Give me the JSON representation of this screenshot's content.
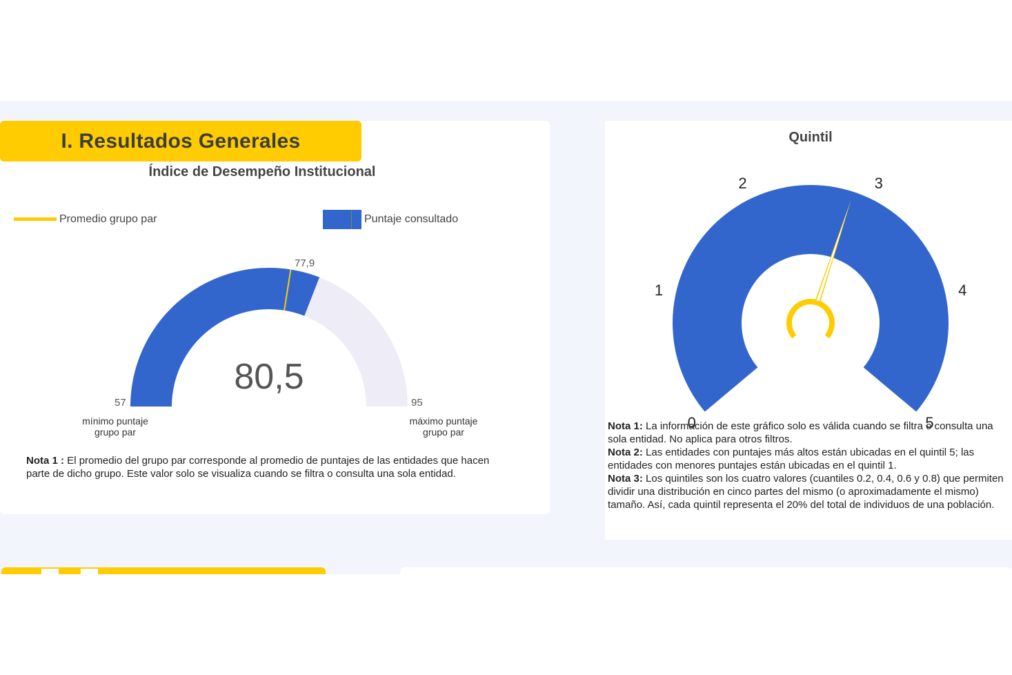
{
  "section": {
    "title": "I. Resultados Generales"
  },
  "gauge_left": {
    "title": "Índice de Desempeño Institucional",
    "legend": {
      "avg_label": "Promedio grupo par",
      "score_label": "Puntaje consultado"
    },
    "min": 57,
    "max": 95,
    "value": 80.5,
    "value_text": "80,5",
    "avg": 77.9,
    "avg_text": "77,9",
    "min_text": "57",
    "max_text": "95",
    "min_caption_1": "mínimo puntaje",
    "min_caption_2": "grupo par",
    "max_caption_1": "máximo puntaje",
    "max_caption_2": "grupo par",
    "colors": {
      "fill": "#3366cc",
      "track": "#edecf7",
      "avg_line": "#fecc01"
    }
  },
  "note_left": {
    "label": "Nota 1 :",
    "text": " El promedio del grupo par corresponde al promedio de puntajes de las entidades que hacen parte de dicho grupo.  Este valor solo se visualiza cuando se filtra o consulta una sola entidad."
  },
  "quintil": {
    "title": "Quintil",
    "ticks": [
      "0",
      "1",
      "2",
      "3",
      "4",
      "5"
    ],
    "min": 0,
    "max": 5,
    "needle_value": 2.85,
    "colors": {
      "fill": "#3366cc",
      "needle": "#fecc01"
    }
  },
  "notes_right": [
    {
      "label": "Nota 1:",
      "text": " La información de este gráfico solo es válida cuando se filtra o consulta una sola entidad. No aplica para otros filtros."
    },
    {
      "label": "Nota 2:",
      "text": " Las entidades con puntajes más altos están ubicadas en el quintil 5; las entidades con menores puntajes están ubicadas en el quintil 1."
    },
    {
      "label": "Nota 3:",
      "text": " Los quintiles son los cuatro valores (cuantiles 0.2, 0.4, 0.6 y 0.8) que permiten dividir una distribución en cinco partes del mismo (o aproximadamente el mismo) tamaño. Así, cada quintil representa el 20% del total de individuos de una población."
    }
  ]
}
